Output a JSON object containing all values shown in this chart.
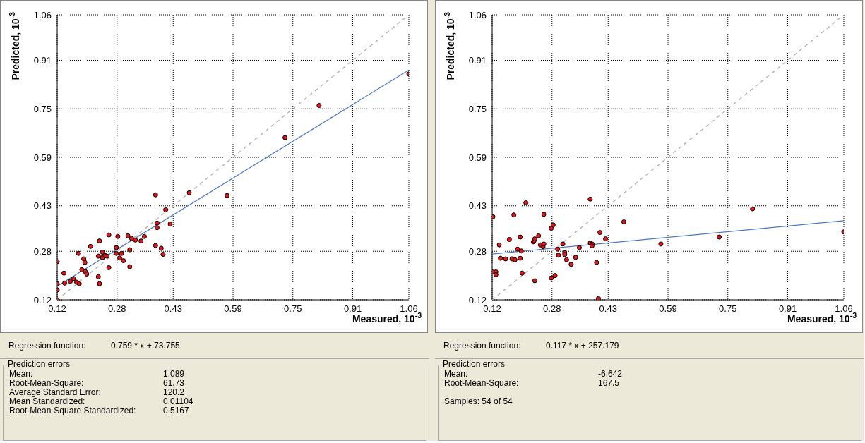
{
  "chart_data": [
    {
      "type": "scatter",
      "xlabel": "Measured, 10$^{-3}$",
      "ylabel": "Predicted, 10$^{-3}$",
      "grid": true,
      "xlim": [
        0.12,
        1.06
      ],
      "ylim": [
        0.12,
        1.06
      ],
      "xticks": [
        0.12,
        0.28,
        0.43,
        0.59,
        0.75,
        0.91,
        1.06
      ],
      "yticks": [
        0.12,
        0.28,
        0.43,
        0.59,
        0.75,
        0.91,
        1.06
      ],
      "series": [
        {
          "type": "line",
          "color": "#a8a8a8",
          "line_style": "dashed",
          "marker": "none",
          "x": [
            0.12,
            1.06
          ],
          "values": [
            0.12,
            1.06
          ]
        },
        {
          "type": "line",
          "color": "#4a78c8",
          "line_style": "solid",
          "marker": "none",
          "x": [
            0.12,
            1.06
          ],
          "values": [
            0.165,
            0.878
          ]
        },
        {
          "color": "#e0181c",
          "marker": "circle",
          "x": [
            0.12,
            0.12,
            0.12,
            0.12,
            0.138,
            0.14,
            0.155,
            0.164,
            0.172,
            0.179,
            0.177,
            0.186,
            0.191,
            0.194,
            0.195,
            0.199,
            0.209,
            0.23,
            0.233,
            0.23,
            0.233,
            0.241,
            0.241,
            0.248,
            0.253,
            0.258,
            0.258,
            0.278,
            0.278,
            0.282,
            0.287,
            0.292,
            0.297,
            0.309,
            0.314,
            0.314,
            0.319,
            0.329,
            0.344,
            0.353,
            0.383,
            0.383,
            0.387,
            0.387,
            0.398,
            0.403,
            0.41,
            0.422,
            0.473,
            0.574,
            0.729,
            0.82,
            1.06
          ],
          "values": [
            0.153,
            0.173,
            0.246,
            0.12,
            0.208,
            0.175,
            0.181,
            0.19,
            0.178,
            0.173,
            0.273,
            0.219,
            0.255,
            0.243,
            0.213,
            0.205,
            0.296,
            0.196,
            0.173,
            0.264,
            0.314,
            0.277,
            0.259,
            0.266,
            0.264,
            0.334,
            0.226,
            0.292,
            0.273,
            0.329,
            0.258,
            0.273,
            0.249,
            0.331,
            0.285,
            0.229,
            0.322,
            0.317,
            0.314,
            0.329,
            0.466,
            0.299,
            0.373,
            0.358,
            0.29,
            0.27,
            0.417,
            0.37,
            0.473,
            0.464,
            0.655,
            0.761,
            0.865
          ]
        }
      ],
      "annotations": [
        "Regression function:",
        "0.759 * x + 73.755",
        "Prediction errors",
        "Mean:",
        "1.089",
        "Root-Mean-Square:",
        "61.73",
        "Average Standard Error:",
        "120.2",
        "Mean Standardized:",
        "0.01104",
        "Root-Mean-Square Standardized:",
        "0.5167"
      ]
    },
    {
      "type": "scatter",
      "xlabel": "Measured, 10$^{-3}$",
      "ylabel": "Predicted, 10$^{-3}$",
      "grid": true,
      "xlim": [
        0.12,
        1.06
      ],
      "ylim": [
        0.12,
        1.06
      ],
      "xticks": [
        0.12,
        0.28,
        0.43,
        0.59,
        0.75,
        0.91,
        1.06
      ],
      "yticks": [
        0.12,
        0.28,
        0.43,
        0.59,
        0.75,
        0.91,
        1.06
      ],
      "series": [
        {
          "type": "line",
          "color": "#a8a8a8",
          "line_style": "dashed",
          "marker": "none",
          "x": [
            0.12,
            1.06
          ],
          "values": [
            0.12,
            1.06
          ]
        },
        {
          "type": "line",
          "color": "#4a78c8",
          "line_style": "solid",
          "marker": "none",
          "x": [
            0.12,
            1.06
          ],
          "values": [
            0.271,
            0.381
          ]
        },
        {
          "color": "#e0181c",
          "marker": "circle",
          "x": [
            0.122,
            0.12,
            0.13,
            0.13,
            0.139,
            0.142,
            0.156,
            0.166,
            0.173,
            0.178,
            0.181,
            0.188,
            0.195,
            0.195,
            0.198,
            0.2,
            0.21,
            0.23,
            0.232,
            0.234,
            0.234,
            0.244,
            0.249,
            0.256,
            0.258,
            0.258,
            0.278,
            0.283,
            0.278,
            0.288,
            0.295,
            0.297,
            0.309,
            0.314,
            0.314,
            0.319,
            0.331,
            0.343,
            0.353,
            0.382,
            0.382,
            0.387,
            0.387,
            0.399,
            0.404,
            0.408,
            0.423,
            0.472,
            0.571,
            0.727,
            0.816,
            1.06
          ],
          "values": [
            0.394,
            0.212,
            0.212,
            0.203,
            0.301,
            0.257,
            0.255,
            0.319,
            0.255,
            0.4,
            0.252,
            0.287,
            0.327,
            0.257,
            0.281,
            0.208,
            0.44,
            0.311,
            0.315,
            0.321,
            0.183,
            0.331,
            0.301,
            0.295,
            0.402,
            0.304,
            0.356,
            0.367,
            0.192,
            0.2,
            0.287,
            0.267,
            0.304,
            0.275,
            0.269,
            0.252,
            0.237,
            0.26,
            0.292,
            0.452,
            0.307,
            0.304,
            0.298,
            0.243,
            0.124,
            0.342,
            0.321,
            0.377,
            0.304,
            0.327,
            0.42,
            0.344
          ]
        }
      ],
      "annotations": [
        "Regression function:",
        "0.117 * x + 257.179",
        "Prediction errors",
        "Mean:",
        "-6.642",
        "Root-Mean-Square:",
        "167.5",
        "Samples: 54 of 54"
      ]
    }
  ]
}
